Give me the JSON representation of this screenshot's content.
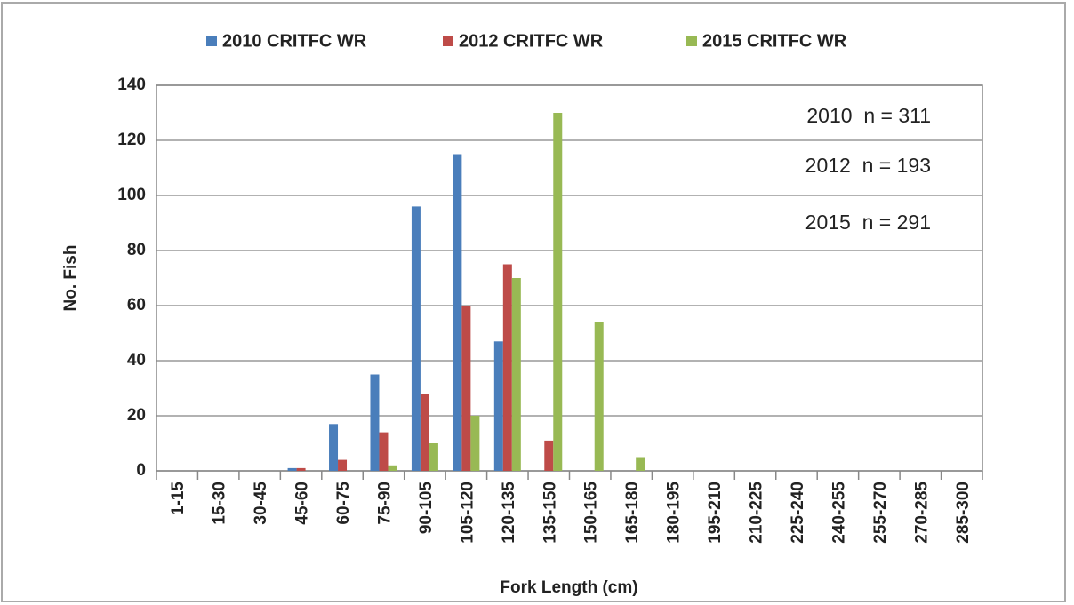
{
  "chart_data": {
    "type": "bar",
    "x_label": "Fork Length (cm)",
    "y_label": "No. Fish",
    "categories": [
      "1-15",
      "15-30",
      "30-45",
      "45-60",
      "60-75",
      "75-90",
      "90-105",
      "105-120",
      "120-135",
      "135-150",
      "150-165",
      "165-180",
      "180-195",
      "195-210",
      "210-225",
      "225-240",
      "240-255",
      "255-270",
      "270-285",
      "285-300"
    ],
    "series": [
      {
        "name": "2010 CRITFC WR",
        "color": "#4a7ebb",
        "values": [
          0,
          0,
          0,
          1,
          17,
          35,
          96,
          115,
          47,
          0,
          0,
          0,
          0,
          0,
          0,
          0,
          0,
          0,
          0,
          0
        ]
      },
      {
        "name": "2012 CRITFC WR",
        "color": "#be4b48",
        "values": [
          0,
          0,
          0,
          1,
          4,
          14,
          28,
          60,
          75,
          11,
          0,
          0,
          0,
          0,
          0,
          0,
          0,
          0,
          0,
          0
        ]
      },
      {
        "name": "2015 CRITFC WR",
        "color": "#98b954",
        "values": [
          0,
          0,
          0,
          0,
          0,
          2,
          10,
          20,
          70,
          130,
          54,
          5,
          0,
          0,
          0,
          0,
          0,
          0,
          0,
          0
        ]
      }
    ],
    "annotations": [
      "2010  n = 311",
      "2012  n = 193",
      "2015  n = 291"
    ],
    "ylim": [
      0,
      140
    ],
    "yticks": [
      0,
      20,
      40,
      60,
      80,
      100,
      120,
      140
    ],
    "grid": true,
    "legend": "top"
  }
}
